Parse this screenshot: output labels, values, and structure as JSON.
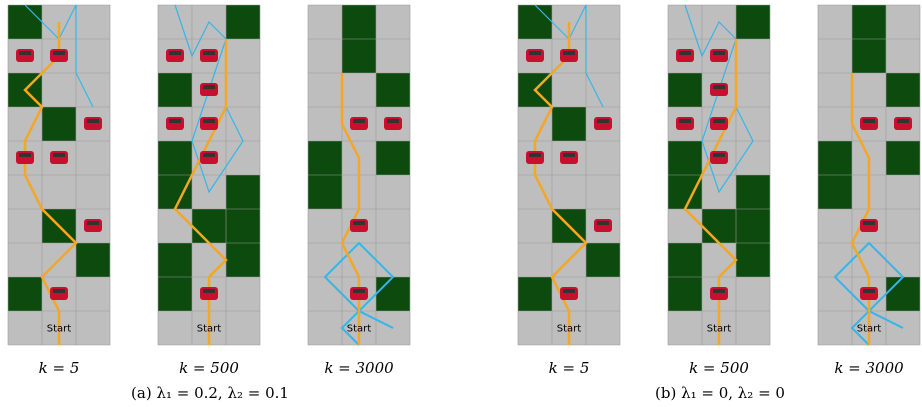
{
  "panels": [
    {
      "start": "Start",
      "caption": "k = 5"
    },
    {
      "start": "Start",
      "caption": "k = 500"
    },
    {
      "start": "Start",
      "caption": "k = 3000"
    },
    {
      "start": "Start",
      "caption": "k = 5"
    },
    {
      "start": "Start",
      "caption": "k = 500"
    },
    {
      "start": "Start",
      "caption": "k = 3000"
    }
  ],
  "subcaptions": [
    "(a) λ₁ = 0.2, λ₂ = 0.1",
    "(b) λ₁ = 0, λ₂ = 0"
  ]
}
